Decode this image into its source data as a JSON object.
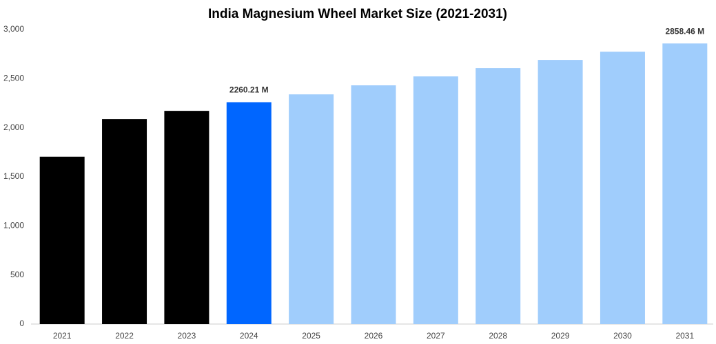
{
  "chart_data": {
    "type": "bar",
    "title": "India Magnesium Wheel Market Size (2021-2031)",
    "categories": [
      "2021",
      "2022",
      "2023",
      "2024",
      "2025",
      "2026",
      "2027",
      "2028",
      "2029",
      "2030",
      "2031"
    ],
    "values": [
      1705,
      2088,
      2172,
      2260.21,
      2340,
      2432,
      2523,
      2607,
      2691,
      2775,
      2858.46
    ],
    "value_labels": [
      null,
      null,
      null,
      "2260.21 M",
      null,
      null,
      null,
      null,
      null,
      null,
      "2858.46 M"
    ],
    "colors": [
      "#000000",
      "#000000",
      "#000000",
      "#0066ff",
      "#a0cdfc",
      "#a0cdfc",
      "#a0cdfc",
      "#a0cdfc",
      "#a0cdfc",
      "#a0cdfc",
      "#a0cdfc"
    ],
    "ylim": [
      0,
      3000
    ],
    "yticks": [
      0,
      500,
      {
        "value": 1000,
        "label": "1,000"
      },
      {
        "value": 1500,
        "label": "1,500"
      },
      {
        "value": 2000,
        "label": "2,000"
      },
      {
        "value": 2500,
        "label": "2,500"
      },
      {
        "value": 3000,
        "label": "3,000"
      }
    ],
    "grid": false
  }
}
